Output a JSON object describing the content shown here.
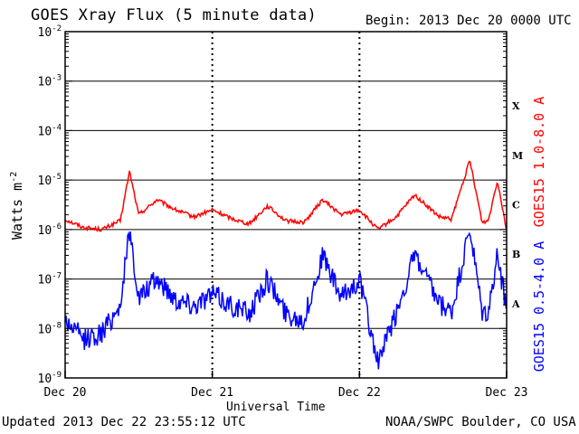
{
  "header": {
    "title": "GOES Xray Flux (5 minute data)",
    "begin": "Begin:  2013 Dec 20 0000 UTC"
  },
  "footer": {
    "updated": "Updated 2013 Dec 22 23:55:12 UTC",
    "credit": "NOAA/SWPC Boulder, CO USA"
  },
  "colors": {
    "long": "#ff0000",
    "short": "#0000ff",
    "axis": "#000000",
    "background": "#ffffff"
  },
  "chart_data": {
    "type": "line",
    "title": "GOES Xray Flux (5 minute data)",
    "xlabel": "Universal Time",
    "ylabel": "Watts m",
    "ylabel_sup": "-2",
    "yscale": "log",
    "ylim": [
      1e-09,
      0.01
    ],
    "xlim_days": [
      0,
      3
    ],
    "x_ticks": [
      "Dec 20",
      "Dec 21",
      "Dec 22",
      "Dec 23"
    ],
    "y_ticks": [
      {
        "base": "10",
        "exp": "-9"
      },
      {
        "base": "10",
        "exp": "-8"
      },
      {
        "base": "10",
        "exp": "-7"
      },
      {
        "base": "10",
        "exp": "-6"
      },
      {
        "base": "10",
        "exp": "-5"
      },
      {
        "base": "10",
        "exp": "-4"
      },
      {
        "base": "10",
        "exp": "-3"
      },
      {
        "base": "10",
        "exp": "-2"
      }
    ],
    "flare_classes": [
      {
        "label": "A",
        "value": 1e-08
      },
      {
        "label": "B",
        "value": 1e-07
      },
      {
        "label": "C",
        "value": 1e-06
      },
      {
        "label": "M",
        "value": 1e-05
      },
      {
        "label": "X",
        "value": 0.0001
      }
    ],
    "grid": "horizontal lines at 1e-8 through 1e-3",
    "series": [
      {
        "name": "GOES15 1.0-8.0 A",
        "color": "#ff0000",
        "x": [
          "Dec 20 00:00",
          "Dec 20 03:00",
          "Dec 20 06:00",
          "Dec 20 09:00",
          "Dec 20 10:30",
          "Dec 20 12:00",
          "Dec 20 15:00",
          "Dec 20 18:00",
          "Dec 20 21:00",
          "Dec 21 00:00",
          "Dec 21 03:00",
          "Dec 21 06:00",
          "Dec 21 09:00",
          "Dec 21 12:00",
          "Dec 21 15:00",
          "Dec 21 18:00",
          "Dec 21 21:00",
          "Dec 22 00:00",
          "Dec 22 03:00",
          "Dec 22 06:00",
          "Dec 22 09:00",
          "Dec 22 13:00",
          "Dec 22 15:00",
          "Dec 22 18:00",
          "Dec 22 20:00",
          "Dec 22 21:00",
          "Dec 22 22:30",
          "Dec 22 23:55"
        ],
        "values": [
          1.6e-06,
          1.1e-06,
          1e-06,
          1.5e-06,
          1.5e-05,
          2e-06,
          4e-06,
          2.5e-06,
          1.8e-06,
          2.5e-06,
          1.7e-06,
          1.3e-06,
          3e-06,
          1.5e-06,
          1.4e-06,
          4e-06,
          2e-06,
          2.5e-06,
          1e-06,
          1.8e-06,
          5e-06,
          1.8e-06,
          1.6e-06,
          2.5e-05,
          1.4e-06,
          1.5e-06,
          1e-05,
          1.1e-06
        ]
      },
      {
        "name": "GOES15 0.5-4.0 A",
        "color": "#0000ff",
        "x": [
          "Dec 20 00:00",
          "Dec 20 03:00",
          "Dec 20 06:00",
          "Dec 20 09:00",
          "Dec 20 10:30",
          "Dec 20 12:00",
          "Dec 20 15:00",
          "Dec 20 18:00",
          "Dec 20 21:00",
          "Dec 21 00:00",
          "Dec 21 03:00",
          "Dec 21 06:00",
          "Dec 21 09:00",
          "Dec 21 12:00",
          "Dec 21 15:00",
          "Dec 21 18:00",
          "Dec 21 21:00",
          "Dec 22 00:00",
          "Dec 22 03:00",
          "Dec 22 06:00",
          "Dec 22 09:00",
          "Dec 22 13:00",
          "Dec 22 15:00",
          "Dec 22 18:00",
          "Dec 22 20:00",
          "Dec 22 21:00",
          "Dec 22 22:30",
          "Dec 22 23:55"
        ],
        "values": [
          1.5e-08,
          6e-09,
          8e-09,
          3e-08,
          1e-06,
          4e-08,
          1e-07,
          4e-08,
          3e-08,
          5e-08,
          3e-08,
          2e-08,
          1e-07,
          2e-08,
          1.5e-08,
          3e-07,
          4e-08,
          1e-07,
          2e-09,
          2e-08,
          3e-07,
          3e-08,
          2e-08,
          1e-06,
          2e-08,
          2e-08,
          3e-07,
          3e-08
        ]
      }
    ]
  }
}
